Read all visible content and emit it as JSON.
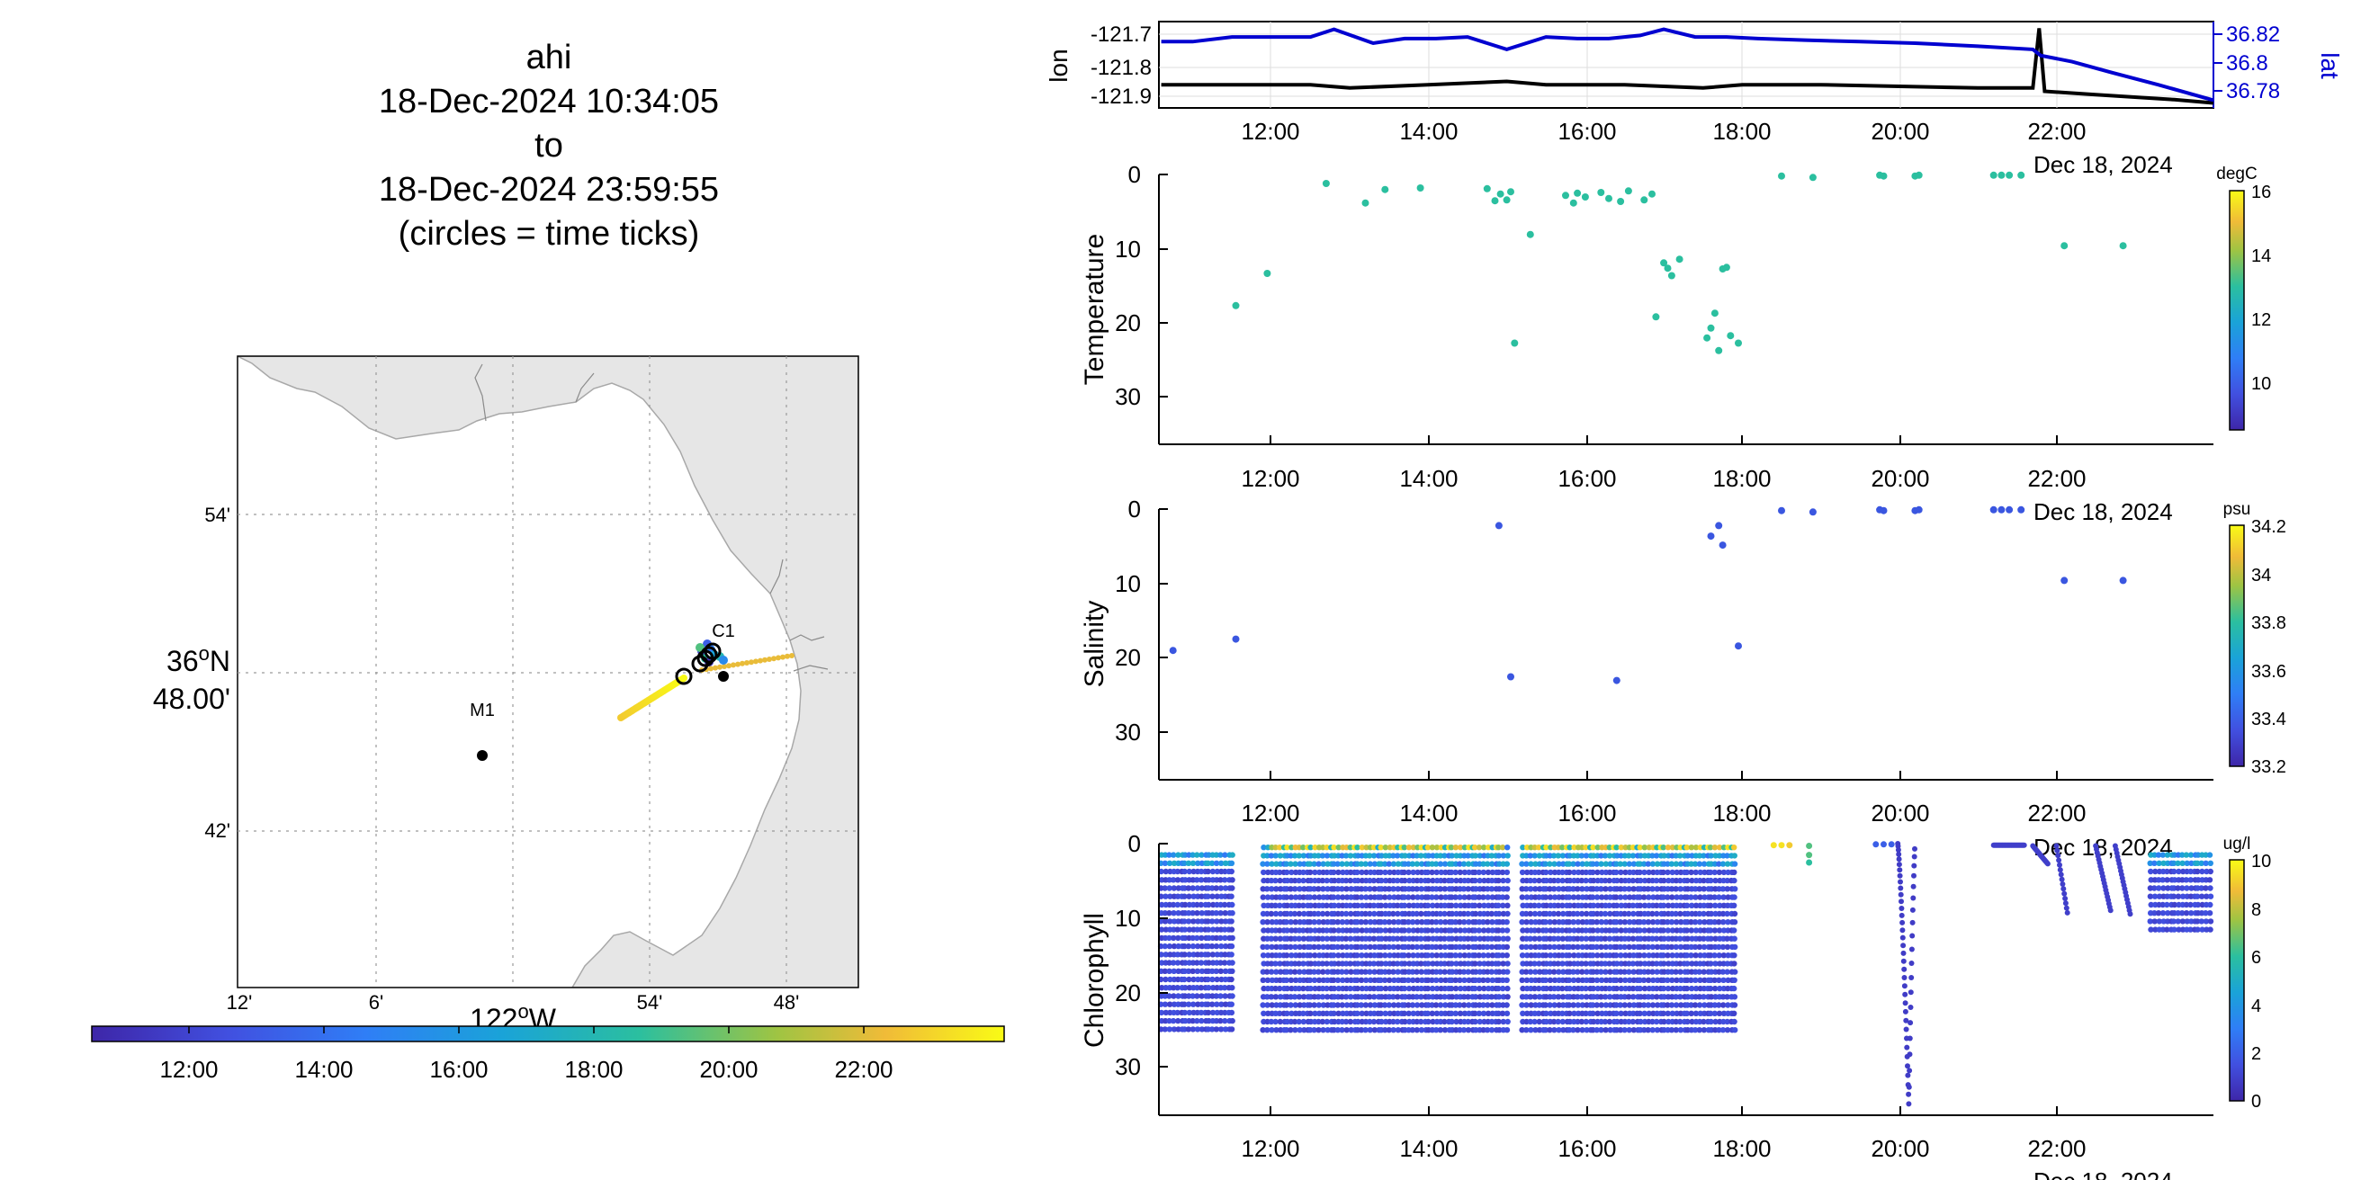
{
  "title": {
    "line1": "ahi",
    "line2": "18-Dec-2024 10:34:05",
    "line3": "to",
    "line4": "18-Dec-2024 23:59:55",
    "line5": "(circles = time ticks)"
  },
  "map": {
    "lat_ticks": [
      "54'",
      "36°N 48.00'",
      "42'"
    ],
    "lon_ticks": [
      "12'",
      "6'",
      "54'",
      "48'"
    ],
    "lon_main_label": "122°W",
    "markers": [
      {
        "label": "M1"
      },
      {
        "label": "C1"
      }
    ],
    "colorbar_ticks": [
      "12:00",
      "14:00",
      "16:00",
      "18:00",
      "20:00",
      "22:00"
    ],
    "colors": {
      "land": "#e6e6e6",
      "water": "#ffffff",
      "grid": "#9a9a9a"
    }
  },
  "chart_data": [
    {
      "type": "line",
      "name": "position",
      "date_label": "Dec 18, 2024",
      "x_ticks": [
        "12:00",
        "14:00",
        "16:00",
        "18:00",
        "20:00",
        "22:00"
      ],
      "left_axis": {
        "label": "lon",
        "ticks": [
          "-121.7",
          "-121.8",
          "-121.9"
        ],
        "range": [
          -121.93,
          -121.67
        ]
      },
      "right_axis": {
        "label": "lat",
        "ticks": [
          "36.82",
          "36.8",
          "36.78"
        ],
        "range": [
          36.772,
          36.828
        ],
        "color": "#0000d0"
      },
      "series": [
        {
          "name": "lon",
          "color": "#000000",
          "x": [
            10.6,
            11.5,
            12.5,
            13.0,
            14.0,
            15.0,
            15.5,
            16.5,
            17.5,
            18.0,
            19.0,
            20.0,
            21.0,
            21.7,
            21.78,
            21.85,
            22.5,
            23.5,
            24.0
          ],
          "y": [
            -121.86,
            -121.86,
            -121.86,
            -121.87,
            -121.86,
            -121.85,
            -121.86,
            -121.86,
            -121.87,
            -121.86,
            -121.86,
            -121.865,
            -121.87,
            -121.87,
            -121.69,
            -121.88,
            -121.89,
            -121.905,
            -121.915
          ]
        },
        {
          "name": "lat",
          "color": "#0000d0",
          "x": [
            10.6,
            11.0,
            11.5,
            12.0,
            12.5,
            12.8,
            13.3,
            13.7,
            14.1,
            14.5,
            15.0,
            15.5,
            15.9,
            16.3,
            16.7,
            17.0,
            17.4,
            17.8,
            18.2,
            18.8,
            19.5,
            20.2,
            21.0,
            21.7,
            21.8,
            22.2,
            22.7,
            23.3,
            24.0
          ],
          "y": [
            36.815,
            36.815,
            36.818,
            36.818,
            36.818,
            36.823,
            36.814,
            36.817,
            36.817,
            36.818,
            36.81,
            36.818,
            36.817,
            36.817,
            36.819,
            36.823,
            36.818,
            36.818,
            36.817,
            36.816,
            36.815,
            36.814,
            36.812,
            36.81,
            36.806,
            36.802,
            36.795,
            36.787,
            36.777
          ]
        }
      ]
    },
    {
      "type": "scatter",
      "name": "temperature",
      "ylabel": "Temperature",
      "x_ticks": [
        "12:00",
        "14:00",
        "16:00",
        "18:00",
        "20:00",
        "22:00"
      ],
      "date_label": "Dec 18, 2024",
      "y_ticks": [
        "0",
        "10",
        "20",
        "30"
      ],
      "ylim": [
        0,
        36
      ],
      "colorbar": {
        "unit": "degC",
        "ticks": [
          "16",
          "14",
          "12",
          "10"
        ],
        "range": [
          8.5,
          16
        ]
      },
      "point_color": "#2bbf9f",
      "x": [
        11.55,
        11.95,
        12.7,
        13.2,
        13.45,
        13.9,
        14.75,
        14.85,
        14.92,
        15.0,
        15.05,
        15.1,
        15.3,
        15.75,
        15.85,
        15.9,
        16.0,
        16.2,
        16.3,
        16.45,
        16.55,
        16.75,
        16.85,
        16.9,
        17.0,
        17.05,
        17.1,
        17.2,
        17.55,
        17.6,
        17.65,
        17.7,
        17.75,
        17.8,
        17.85,
        17.95,
        18.5,
        18.9,
        19.75,
        19.8,
        20.2,
        20.25,
        21.2,
        21.3,
        21.4,
        21.55,
        22.1,
        22.85
      ],
      "y": [
        17.5,
        13.2,
        1.2,
        3.8,
        2.0,
        1.8,
        1.9,
        3.5,
        2.6,
        3.4,
        2.3,
        22.5,
        8.0,
        2.8,
        3.8,
        2.5,
        3.0,
        2.4,
        3.2,
        3.6,
        2.2,
        3.4,
        2.6,
        19.0,
        11.8,
        12.5,
        13.5,
        11.3,
        21.8,
        20.5,
        18.5,
        23.5,
        12.6,
        12.4,
        21.5,
        22.5,
        0.2,
        0.4,
        0.1,
        0.2,
        0.2,
        0.1,
        0.1,
        0.1,
        0.1,
        0.1,
        9.5,
        9.5
      ]
    },
    {
      "type": "scatter",
      "name": "salinity",
      "ylabel": "Salinity",
      "x_ticks": [
        "12:00",
        "14:00",
        "16:00",
        "18:00",
        "20:00",
        "22:00"
      ],
      "date_label": "Dec 18, 2024",
      "y_ticks": [
        "0",
        "10",
        "20",
        "30"
      ],
      "ylim": [
        0,
        36
      ],
      "colorbar": {
        "unit": "psu",
        "ticks": [
          "34.2",
          "34",
          "33.8",
          "33.6",
          "33.4",
          "33.2"
        ],
        "range": [
          33.2,
          34.2
        ]
      },
      "point_color": "#3a56e0",
      "x": [
        10.75,
        11.55,
        14.9,
        15.05,
        16.4,
        17.6,
        17.7,
        17.75,
        17.95,
        18.5,
        18.9,
        19.75,
        19.8,
        20.2,
        20.25,
        21.2,
        21.3,
        21.4,
        21.55,
        22.1,
        22.85
      ],
      "y": [
        18.8,
        17.3,
        2.2,
        22.3,
        22.8,
        3.6,
        2.2,
        4.8,
        18.2,
        0.2,
        0.4,
        0.1,
        0.2,
        0.2,
        0.1,
        0.1,
        0.1,
        0.1,
        0.1,
        9.5,
        9.5
      ]
    },
    {
      "type": "scatter",
      "name": "chlorophyll",
      "ylabel": "Chlorophyll",
      "x_ticks": [
        "12:00",
        "14:00",
        "16:00",
        "18:00",
        "20:00",
        "22:00"
      ],
      "date_label": "Dec 18, 2024",
      "y_ticks": [
        "0",
        "10",
        "20",
        "30"
      ],
      "ylim": [
        0,
        36
      ],
      "colorbar": {
        "unit": "ug/l",
        "ticks": [
          "10",
          "8",
          "6",
          "4",
          "2",
          "0"
        ],
        "range": [
          0,
          10
        ]
      },
      "dense_blocks": [
        {
          "x0": 10.6,
          "x1": 11.55,
          "d0": 1.5,
          "d1": 25.5
        },
        {
          "x0": 11.9,
          "x1": 15.05,
          "d0": 0.5,
          "d1": 25.5
        },
        {
          "x0": 15.2,
          "x1": 17.95,
          "d0": 0.5,
          "d1": 25.5
        },
        {
          "x0": 23.2,
          "x1": 24.0,
          "d0": 1.5,
          "d1": 11.5
        }
      ],
      "surface_high_ranges": [
        [
          12.0,
          15.0
        ],
        [
          15.2,
          17.95
        ]
      ],
      "sparse_points": [
        {
          "x": 18.4,
          "y": 0.2,
          "v": 9.5
        },
        {
          "x": 18.5,
          "y": 0.2,
          "v": 9.5
        },
        {
          "x": 18.6,
          "y": 0.2,
          "v": 9.0
        },
        {
          "x": 18.85,
          "y": 0.3,
          "v": 6.5
        },
        {
          "x": 18.85,
          "y": 1.5,
          "v": 6.5
        },
        {
          "x": 18.85,
          "y": 2.5,
          "v": 6.0
        },
        {
          "x": 19.7,
          "y": 0.1,
          "v": 2.0
        },
        {
          "x": 19.8,
          "y": 0.1,
          "v": 2.0
        },
        {
          "x": 19.9,
          "y": 0.1,
          "v": 2.0
        }
      ],
      "profile_dive": {
        "x_start": 19.98,
        "x_bottom": 20.12,
        "x_end": 20.2,
        "depth_max": 34.5
      },
      "short_profiles": [
        {
          "x0": 21.2,
          "x1": 21.6,
          "d1": 0.5
        },
        {
          "x0": 21.7,
          "x1": 21.9,
          "d1": 2.5
        },
        {
          "x0": 22.0,
          "x1": 22.15,
          "d1": 9.5
        },
        {
          "x0": 22.5,
          "x1": 22.7,
          "d1": 9.0
        },
        {
          "x0": 22.75,
          "x1": 22.95,
          "d1": 9.5
        }
      ]
    }
  ]
}
